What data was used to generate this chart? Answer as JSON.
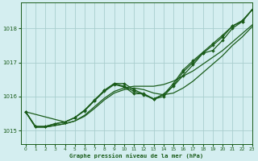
{
  "title": "Graphe pression niveau de la mer (hPa)",
  "bg_color": "#d4eef0",
  "grid_color": "#a8cece",
  "line_color": "#1a5c1a",
  "marker_color": "#1a5c1a",
  "xlim": [
    -0.5,
    23
  ],
  "ylim": [
    1014.6,
    1018.75
  ],
  "xticks": [
    0,
    1,
    2,
    3,
    4,
    5,
    6,
    7,
    8,
    9,
    10,
    11,
    12,
    13,
    14,
    15,
    16,
    17,
    18,
    19,
    20,
    21,
    22,
    23
  ],
  "yticks": [
    1015,
    1016,
    1017,
    1018
  ],
  "series": [
    {
      "x": [
        0,
        1,
        2,
        3,
        4,
        5,
        6,
        7,
        8,
        9,
        10,
        11,
        12,
        13,
        14,
        15,
        16,
        17,
        18,
        19,
        20,
        21,
        22,
        23
      ],
      "y": [
        1015.55,
        1015.1,
        1015.1,
        1015.15,
        1015.2,
        1015.28,
        1015.45,
        1015.7,
        1015.95,
        1016.15,
        1016.25,
        1016.3,
        1016.3,
        1016.3,
        1016.35,
        1016.45,
        1016.6,
        1016.75,
        1016.95,
        1017.15,
        1017.35,
        1017.6,
        1017.85,
        1018.1
      ],
      "marker": false,
      "lw": 0.9
    },
    {
      "x": [
        0,
        1,
        2,
        3,
        4,
        5,
        6,
        7,
        8,
        9,
        10,
        11,
        12,
        13,
        14,
        15,
        16,
        17,
        18,
        19,
        20,
        21,
        22,
        23
      ],
      "y": [
        1015.55,
        1015.1,
        1015.1,
        1015.15,
        1015.2,
        1015.28,
        1015.42,
        1015.65,
        1015.9,
        1016.1,
        1016.2,
        1016.25,
        1016.2,
        1016.1,
        1016.05,
        1016.1,
        1016.25,
        1016.45,
        1016.7,
        1016.95,
        1017.2,
        1017.5,
        1017.75,
        1018.05
      ],
      "marker": false,
      "lw": 0.9
    },
    {
      "x": [
        0,
        4,
        5,
        6,
        7,
        8,
        9,
        10,
        11,
        12,
        13,
        14,
        15,
        16,
        17,
        18,
        19,
        20,
        21,
        22,
        23
      ],
      "y": [
        1015.55,
        1015.25,
        1015.38,
        1015.6,
        1015.88,
        1016.18,
        1016.38,
        1016.38,
        1016.2,
        1016.07,
        1015.92,
        1016.07,
        1016.3,
        1016.62,
        1016.93,
        1017.27,
        1017.35,
        1017.65,
        1018.0,
        1018.2,
        1018.55
      ],
      "marker": true,
      "lw": 0.9
    },
    {
      "x": [
        0,
        1,
        2,
        3,
        4,
        5,
        6,
        7,
        8,
        9,
        10,
        11,
        12,
        13,
        14,
        15,
        16,
        17,
        18,
        19,
        20,
        21,
        22,
        23
      ],
      "y": [
        1015.55,
        1015.12,
        1015.12,
        1015.2,
        1015.25,
        1015.38,
        1015.6,
        1015.9,
        1016.18,
        1016.38,
        1016.3,
        1016.15,
        1016.05,
        1015.92,
        1016.0,
        1016.32,
        1016.72,
        1017.0,
        1017.27,
        1017.5,
        1017.75,
        1018.07,
        1018.2,
        1018.55
      ],
      "marker": true,
      "lw": 0.9
    },
    {
      "x": [
        0,
        1,
        2,
        3,
        4,
        5,
        6,
        7,
        8,
        9,
        10,
        11,
        12,
        13,
        14,
        15,
        16,
        17,
        18,
        19,
        20,
        21,
        22,
        23
      ],
      "y": [
        1015.55,
        1015.12,
        1015.12,
        1015.2,
        1015.25,
        1015.38,
        1015.58,
        1015.88,
        1016.15,
        1016.35,
        1016.28,
        1016.08,
        1016.08,
        1015.93,
        1016.05,
        1016.38,
        1016.78,
        1017.05,
        1017.3,
        1017.55,
        1017.8,
        1018.07,
        1018.23,
        1018.55
      ],
      "marker": true,
      "lw": 0.9
    }
  ]
}
